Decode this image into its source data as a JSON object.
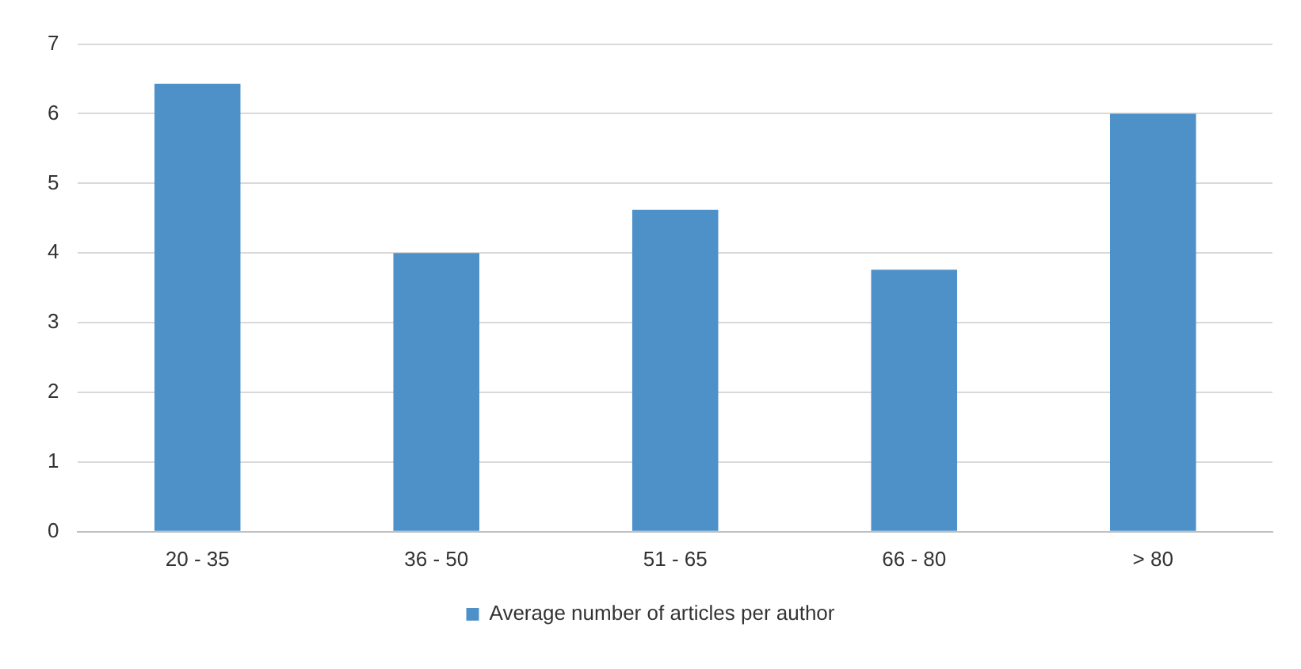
{
  "chart_data": {
    "type": "bar",
    "categories": [
      "20 - 35",
      "36 - 50",
      "51 - 65",
      "66 - 80",
      "> 80"
    ],
    "series": [
      {
        "name": "Average number of articles per author",
        "color": "#4e91c9",
        "values": [
          6.43,
          4.0,
          4.62,
          3.76,
          6.0
        ]
      }
    ],
    "ylim": [
      0,
      7
    ],
    "yticks": [
      0,
      1,
      2,
      3,
      4,
      5,
      6,
      7
    ],
    "grid": "y",
    "legend": "bottom"
  }
}
